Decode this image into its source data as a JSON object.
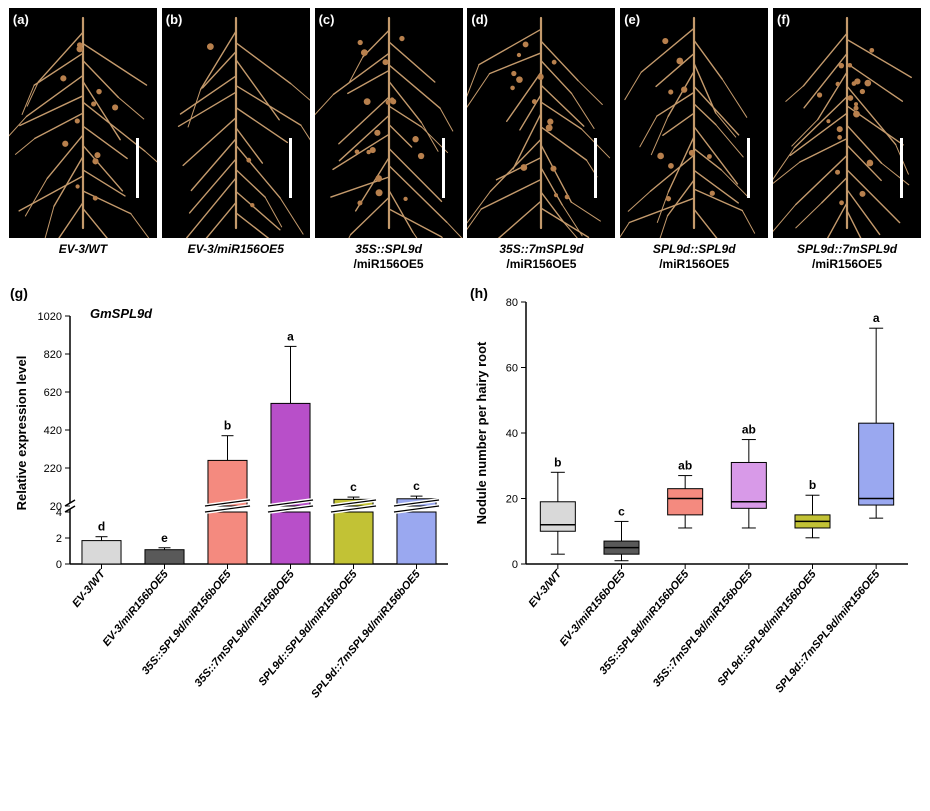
{
  "top_panels": [
    {
      "letter": "(a)",
      "label_line1": "EV-3/WT",
      "label_line2": ""
    },
    {
      "letter": "(b)",
      "label_line1": "EV-3/miR156OE5",
      "label_line2": ""
    },
    {
      "letter": "(c)",
      "label_line1": "35S::SPL9d",
      "label_line2": "/miR156OE5"
    },
    {
      "letter": "(d)",
      "label_line1": "35S::7mSPL9d",
      "label_line2": "/miR156OE5"
    },
    {
      "letter": "(e)",
      "label_line1": "SPL9d::SPL9d",
      "label_line2": "/miR156OE5"
    },
    {
      "letter": "(f)",
      "label_line1": "SPL9d::7mSPL9d",
      "label_line2": "/miR156OE5"
    }
  ],
  "chart_g": {
    "letter": "(g)",
    "gene": "GmSPL9d",
    "y_axis_title": "Relative expression level",
    "lower_ticks": [
      0,
      2,
      4
    ],
    "upper_ticks": [
      20,
      220,
      420,
      620,
      820,
      1020
    ],
    "categories": [
      "EV-3/WT",
      "EV-3/miR156bOE5",
      "35S::SPL9d/miR156bOE5",
      "35S::7mSPL9d/miR156bOE5",
      "SPL9d::SPL9d/miR156bOE5",
      "SPL9d::7mSPL9d/miR156bOE5"
    ],
    "bars": [
      {
        "low": 1.8,
        "err_low": 0.3,
        "high": null,
        "err_high": null,
        "color": "#d9d9d9",
        "sig": "d"
      },
      {
        "low": 1.1,
        "err_low": 0.15,
        "high": null,
        "err_high": null,
        "color": "#595959",
        "sig": "e"
      },
      {
        "low": null,
        "err_low": null,
        "high": 260,
        "err_high": 130,
        "color": "#f48a7f",
        "sig": "b"
      },
      {
        "low": null,
        "err_low": null,
        "high": 560,
        "err_high": 300,
        "color": "#b84fc9",
        "sig": "a"
      },
      {
        "low": null,
        "err_low": null,
        "high": 55,
        "err_high": 12,
        "color": "#c2c235",
        "sig": "c"
      },
      {
        "low": null,
        "err_low": null,
        "high": 58,
        "err_high": 14,
        "color": "#9aa8f0",
        "sig": "c"
      }
    ],
    "bar_border": "#000000",
    "axis_color": "#000000",
    "break_gap": 6
  },
  "chart_h": {
    "letter": "(h)",
    "y_axis_title": "Nodule number per hairy root",
    "y_ticks": [
      0,
      20,
      40,
      60,
      80
    ],
    "categories": [
      "EV-3/WT",
      "EV-3/miR156bOE5",
      "35S::SPL9d/miR156bOE5",
      "35S::7mSPL9d/miR156bOE5",
      "SPL9d::SPL9d/miR156bOE5",
      "SPL9d::7mSPL9d/miR156OE5"
    ],
    "boxes": [
      {
        "min": 3,
        "q1": 10,
        "med": 12,
        "q3": 19,
        "max": 28,
        "color": "#d9d9d9",
        "sig": "b"
      },
      {
        "min": 1,
        "q1": 3,
        "med": 5,
        "q3": 7,
        "max": 13,
        "color": "#595959",
        "sig": "c"
      },
      {
        "min": 11,
        "q1": 15,
        "med": 20,
        "q3": 23,
        "max": 27,
        "color": "#f48a7f",
        "sig": "ab"
      },
      {
        "min": 11,
        "q1": 17,
        "med": 19,
        "q3": 31,
        "max": 38,
        "color": "#d89ae8",
        "sig": "ab"
      },
      {
        "min": 8,
        "q1": 11,
        "med": 13,
        "q3": 15,
        "max": 21,
        "color": "#c2c235",
        "sig": "b"
      },
      {
        "min": 14,
        "q1": 18,
        "med": 20,
        "q3": 43,
        "max": 72,
        "color": "#9aa8f0",
        "sig": "a"
      }
    ],
    "bar_border": "#000000",
    "axis_color": "#000000"
  },
  "root_color": "#c49a6c",
  "nodule_color": "#b8804d"
}
